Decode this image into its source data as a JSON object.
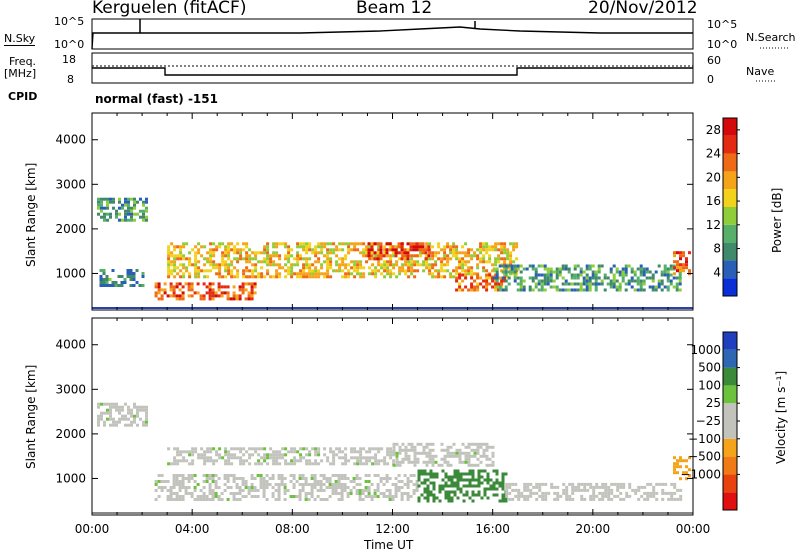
{
  "header": {
    "station": "Kerguelen (fitACF)",
    "beam": "Beam 12",
    "date": "20/Nov/2012"
  },
  "strip_nsky": {
    "left_label": "N.Sky",
    "right_label": "N.Search",
    "left_ticks": [
      "10^5",
      "10^0"
    ],
    "right_ticks": [
      "10^5",
      "10^0"
    ]
  },
  "strip_freq": {
    "left_label_1": "Freq.",
    "left_label_2": "[MHz]",
    "left_ticks": [
      "18",
      "8"
    ],
    "right_label": "Nave",
    "right_ticks": [
      "60",
      "0"
    ]
  },
  "cpid": {
    "label": "CPID",
    "mode": "normal (fast) -151"
  },
  "chart_data": [
    {
      "type": "heatmap",
      "name": "power",
      "ylabel": "Slant Range [km]",
      "ylim": [
        180,
        4600
      ],
      "yticks": [
        "4000",
        "3000",
        "2000",
        "1000"
      ],
      "yticks_values": [
        4000,
        3000,
        2000,
        1000
      ],
      "xlim": [
        0,
        24
      ],
      "colorbar": {
        "label": "Power [dB]",
        "ticks": [
          "28",
          "24",
          "20",
          "16",
          "12",
          "8",
          "4"
        ],
        "tick_values": [
          28,
          24,
          20,
          16,
          12,
          8,
          4
        ],
        "range": [
          0,
          30
        ],
        "colors": [
          "#0a2fd6",
          "#2a5fb8",
          "#3f8a6a",
          "#56b06a",
          "#8fce3a",
          "#f2d21a",
          "#f5a318",
          "#ef6a16",
          "#e52a12",
          "#d40a0a"
        ]
      },
      "features": [
        {
          "t_start": 0.2,
          "t_end": 2.2,
          "range_start": 2200,
          "range_end": 2700,
          "value": 9
        },
        {
          "t_start": 0.3,
          "t_end": 2.0,
          "range_start": 700,
          "range_end": 1100,
          "value": 8
        },
        {
          "t_start": 3.0,
          "t_end": 17.0,
          "range_start": 900,
          "range_end": 1700,
          "value": 18
        },
        {
          "t_start": 11.0,
          "t_end": 13.5,
          "range_start": 1300,
          "range_end": 1700,
          "value": 26
        },
        {
          "t_start": 2.5,
          "t_end": 6.5,
          "range_start": 400,
          "range_end": 800,
          "value": 24
        },
        {
          "t_start": 14.5,
          "t_end": 16.5,
          "range_start": 600,
          "range_end": 1000,
          "value": 22
        },
        {
          "t_start": 16.0,
          "t_end": 23.5,
          "range_start": 600,
          "range_end": 1200,
          "value": 9
        },
        {
          "t_start": 23.2,
          "t_end": 23.8,
          "range_start": 1000,
          "range_end": 1500,
          "value": 24
        }
      ]
    },
    {
      "type": "heatmap",
      "name": "velocity",
      "ylabel": "Slant Range [km]",
      "ylim": [
        180,
        4600
      ],
      "yticks": [
        "4000",
        "3000",
        "2000",
        "1000"
      ],
      "yticks_values": [
        4000,
        3000,
        2000,
        1000
      ],
      "xlim": [
        0,
        24
      ],
      "xticks": [
        "00:00",
        "04:00",
        "08:00",
        "12:00",
        "16:00",
        "20:00",
        "00:00"
      ],
      "xticks_values": [
        0,
        4,
        8,
        12,
        16,
        20,
        24
      ],
      "xlabel": "Time UT",
      "colorbar": {
        "label": "Velocity [m s⁻¹]",
        "ticks": [
          "1000",
          "500",
          "100",
          "25",
          "−25",
          "−100",
          "−500",
          "−1000"
        ],
        "tick_values": [
          1000,
          500,
          100,
          25,
          -25,
          -100,
          -500,
          -1000
        ],
        "colors": [
          "#1f3fbf",
          "#2e68b2",
          "#3a8a3a",
          "#6cc23c",
          "#c3c3bd",
          "#c3c3bd",
          "#f5a318",
          "#ef7a16",
          "#e8420f",
          "#e01010"
        ]
      },
      "features": [
        {
          "t_start": 0.2,
          "t_end": 2.2,
          "range_start": 2200,
          "range_end": 2700,
          "value": 0
        },
        {
          "t_start": 3.0,
          "t_end": 12.0,
          "range_start": 1300,
          "range_end": 1700,
          "value": 0
        },
        {
          "t_start": 12.0,
          "t_end": 16.0,
          "range_start": 1300,
          "range_end": 1800,
          "value": 0
        },
        {
          "t_start": 2.5,
          "t_end": 13.0,
          "range_start": 500,
          "range_end": 1100,
          "value": 0
        },
        {
          "t_start": 13.0,
          "t_end": 16.5,
          "range_start": 500,
          "range_end": 1200,
          "value": 150
        },
        {
          "t_start": 16.5,
          "t_end": 23.5,
          "range_start": 500,
          "range_end": 900,
          "value": -60
        },
        {
          "t_start": 23.2,
          "t_end": 23.8,
          "range_start": 1000,
          "range_end": 1500,
          "value": -300
        }
      ]
    }
  ]
}
